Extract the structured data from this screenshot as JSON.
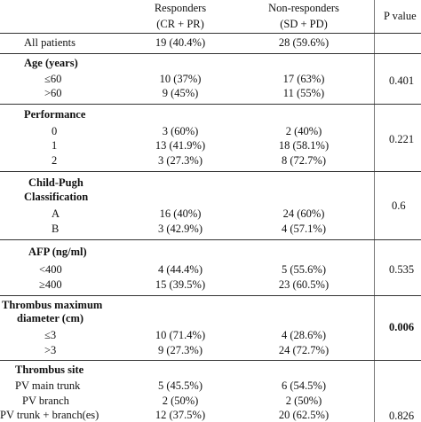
{
  "header": {
    "responders_line1": "Responders",
    "responders_line2": "(CR + PR)",
    "nonresponders_line1": "Non-responders",
    "nonresponders_line2": "(SD + PD)",
    "pvalue": "P value"
  },
  "all_patients": {
    "label": "All patients",
    "responders": "19 (40.4%)",
    "nonresponders": "28 (59.6%)"
  },
  "age": {
    "title": "Age (years)",
    "pvalue": "0.401",
    "rows": [
      {
        "label": "≤60",
        "responders": "10 (37%)",
        "nonresponders": "17 (63%)"
      },
      {
        "label": ">60",
        "responders": "9 (45%)",
        "nonresponders": "11 (55%)"
      }
    ]
  },
  "performance": {
    "title": "Performance",
    "pvalue": "0.221",
    "rows": [
      {
        "label": "0",
        "responders": "3 (60%)",
        "nonresponders": "2 (40%)"
      },
      {
        "label": "1",
        "responders": "13 (41.9%)",
        "nonresponders": "18 (58.1%)"
      },
      {
        "label": "2",
        "responders": "3 (27.3%)",
        "nonresponders": "8 (72.7%)"
      }
    ]
  },
  "child_pugh": {
    "title_line1": "Child-Pugh",
    "title_line2": "Classification",
    "pvalue": "0.6",
    "rows": [
      {
        "label": "A",
        "responders": "16 (40%)",
        "nonresponders": "24 (60%)"
      },
      {
        "label": "B",
        "responders": "3 (42.9%)",
        "nonresponders": "4 (57.1%)"
      }
    ]
  },
  "afp": {
    "title": "AFP (ng/ml)",
    "pvalue": "0.535",
    "rows": [
      {
        "label": "<400",
        "responders": "4 (44.4%)",
        "nonresponders": "5 (55.6%)"
      },
      {
        "label": "≥400",
        "responders": "15 (39.5%)",
        "nonresponders": "23 (60.5%)"
      }
    ]
  },
  "thrombus_diameter": {
    "title_line1": "Thrombus maximum",
    "title_line2": "diameter (cm)",
    "pvalue": "0.006",
    "rows": [
      {
        "label": "≤3",
        "responders": "10 (71.4%)",
        "nonresponders": "4 (28.6%)"
      },
      {
        "label": ">3",
        "responders": "9 (27.3%)",
        "nonresponders": "24 (72.7%)"
      }
    ]
  },
  "thrombus_site": {
    "title": "Thrombus site",
    "pvalue": "0.826",
    "rows": [
      {
        "label": "PV main trunk",
        "responders": "5 (45.5%)",
        "nonresponders": "6 (54.5%)"
      },
      {
        "label": "PV branch",
        "responders": "2 (50%)",
        "nonresponders": "2 (50%)"
      },
      {
        "label": "PV trunk + branch(es)",
        "responders": "12 (37.5%)",
        "nonresponders": "20 (62.5%)"
      }
    ]
  }
}
